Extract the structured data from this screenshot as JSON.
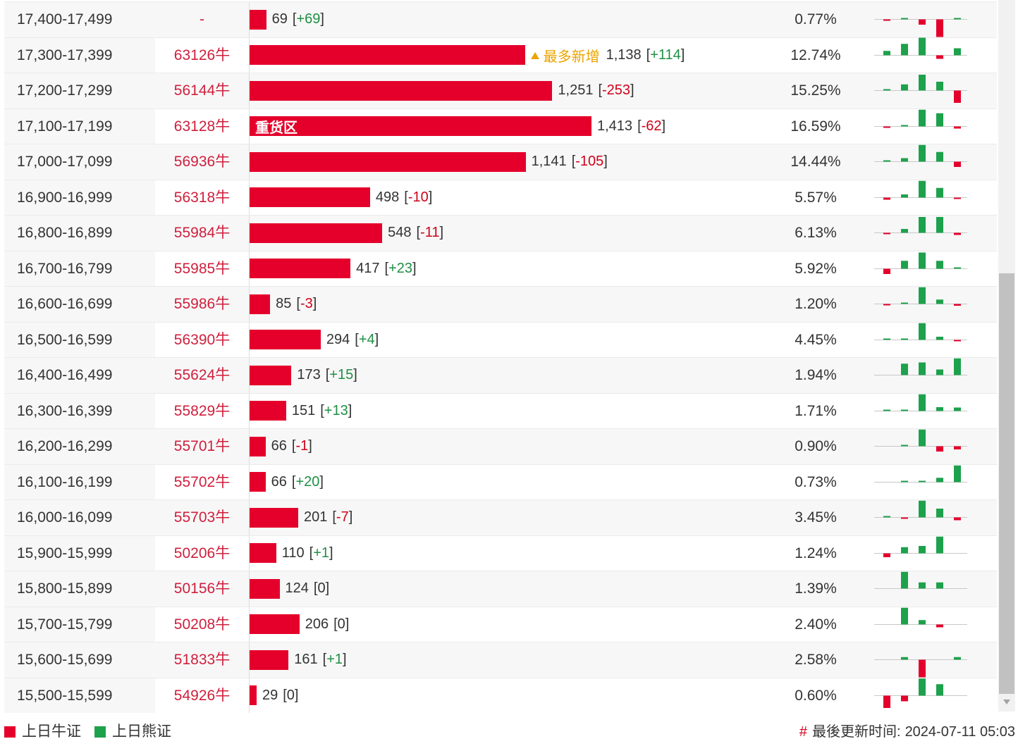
{
  "colors": {
    "bar": "#e4002b",
    "code": "#cf1f3d",
    "gain": "#1f8f44",
    "loss": "#d0021b",
    "tag": "#eca400",
    "trend_up": "#1ea14c",
    "trend_down": "#e4002b",
    "baseline": "#c8c8c8"
  },
  "chart_data": {
    "type": "bar",
    "orientation": "horizontal",
    "rows": [
      {
        "range": "17,400-17,499",
        "code": "-",
        "count": 69,
        "change": "+69",
        "pct": "0.77%",
        "trend": [
          -0.08,
          0.08,
          -0.3,
          -1,
          0.08
        ]
      },
      {
        "range": "17,300-17,399",
        "code": "63126牛",
        "count": 1138,
        "change": "+114",
        "pct": "12.74%",
        "tag": {
          "icon": "up-triangle-icon",
          "label": "最多新增"
        },
        "trend": [
          0.25,
          0.65,
          1,
          -0.2,
          0.4
        ]
      },
      {
        "range": "17,200-17,299",
        "code": "56144牛",
        "count": 1251,
        "change": "-253",
        "pct": "15.25%",
        "trend": [
          0.08,
          0.35,
          0.9,
          0.5,
          -0.7
        ]
      },
      {
        "range": "17,100-17,199",
        "code": "63128牛",
        "count": 1413,
        "change": "-62",
        "pct": "16.59%",
        "bar_label": "重货区",
        "trend": [
          -0.08,
          0.03,
          0.95,
          0.75,
          -0.12
        ]
      },
      {
        "range": "17,000-17,099",
        "code": "56936牛",
        "count": 1141,
        "change": "-105",
        "pct": "14.44%",
        "trend": [
          0.08,
          0.2,
          0.95,
          0.55,
          -0.3
        ]
      },
      {
        "range": "16,900-16,999",
        "code": "56318牛",
        "count": 498,
        "change": "-10",
        "pct": "5.57%",
        "trend": [
          -0.12,
          0.18,
          0.95,
          0.55,
          -0.06
        ]
      },
      {
        "range": "16,800-16,899",
        "code": "55984牛",
        "count": 548,
        "change": "-11",
        "pct": "6.13%",
        "trend": [
          -0.06,
          0.22,
          0.9,
          0.9,
          -0.12
        ]
      },
      {
        "range": "16,700-16,799",
        "code": "55985牛",
        "count": 417,
        "change": "+23",
        "pct": "5.92%",
        "trend": [
          -0.3,
          0.45,
          0.92,
          0.45,
          0.06
        ]
      },
      {
        "range": "16,600-16,699",
        "code": "55986牛",
        "count": 85,
        "change": "-3",
        "pct": "1.20%",
        "trend": [
          -0.06,
          0.08,
          0.95,
          0.25,
          -0.1
        ]
      },
      {
        "range": "16,500-16,599",
        "code": "56390牛",
        "count": 294,
        "change": "+4",
        "pct": "4.45%",
        "trend": [
          0.03,
          0.05,
          0.95,
          0.18,
          -0.08
        ]
      },
      {
        "range": "16,400-16,499",
        "code": "55624牛",
        "count": 173,
        "change": "+15",
        "pct": "1.94%",
        "trend": [
          0,
          0.65,
          0.72,
          0.32,
          0.95
        ]
      },
      {
        "range": "16,300-16,399",
        "code": "55829牛",
        "count": 151,
        "change": "+13",
        "pct": "1.71%",
        "trend": [
          0.03,
          0.03,
          0.95,
          0.22,
          0.2
        ]
      },
      {
        "range": "16,200-16,299",
        "code": "55701牛",
        "count": 66,
        "change": "-1",
        "pct": "0.90%",
        "trend": [
          0,
          0.06,
          0.95,
          -0.3,
          -0.18
        ]
      },
      {
        "range": "16,100-16,199",
        "code": "55702牛",
        "count": 66,
        "change": "+20",
        "pct": "0.73%",
        "trend": [
          0,
          0.05,
          0.06,
          0.25,
          0.95
        ]
      },
      {
        "range": "16,000-16,099",
        "code": "55703牛",
        "count": 201,
        "change": "-7",
        "pct": "3.45%",
        "trend": [
          0.06,
          -0.05,
          0.95,
          0.5,
          -0.16
        ]
      },
      {
        "range": "15,900-15,999",
        "code": "50206牛",
        "count": 110,
        "change": "+1",
        "pct": "1.24%",
        "trend": [
          -0.22,
          0.35,
          0.42,
          0.95,
          0
        ]
      },
      {
        "range": "15,800-15,899",
        "code": "50156牛",
        "count": 124,
        "change": "0",
        "pct": "1.39%",
        "trend": [
          0,
          0.95,
          0.35,
          0.35,
          0
        ]
      },
      {
        "range": "15,700-15,799",
        "code": "50208牛",
        "count": 206,
        "change": "0",
        "pct": "2.40%",
        "trend": [
          0,
          0.95,
          0.25,
          -0.16,
          0
        ]
      },
      {
        "range": "15,600-15,699",
        "code": "51833牛",
        "count": 161,
        "change": "+1",
        "pct": "2.58%",
        "trend": [
          0,
          0.15,
          -1,
          0,
          0.15
        ]
      },
      {
        "range": "15,500-15,599",
        "code": "54926牛",
        "count": 29,
        "change": "0",
        "pct": "0.60%",
        "trend": [
          -0.7,
          -0.32,
          0.97,
          0.65,
          0
        ]
      }
    ],
    "legend": [
      {
        "label": "上日牛证",
        "color": "#e4002b"
      },
      {
        "label": "上日熊证",
        "color": "#1ea14c"
      }
    ]
  },
  "footer": {
    "hash": "#",
    "update_label": "最後更新时间:",
    "update_time": "2024-07-11 05:03"
  }
}
